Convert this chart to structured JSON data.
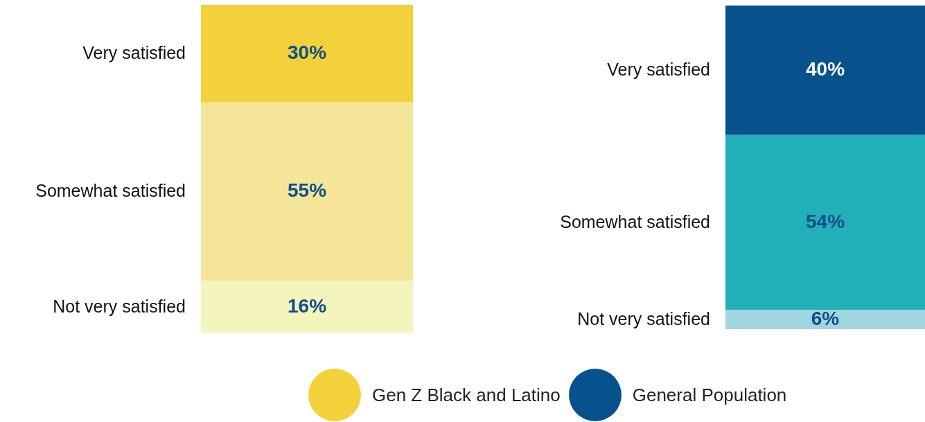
{
  "chart_data": [
    {
      "type": "bar",
      "stacked": true,
      "categories": [
        null
      ],
      "series": [
        {
          "name": "Not very satisfied",
          "color": "#f4f4bd",
          "values": [
            16
          ],
          "value_labels": [
            "16%"
          ]
        },
        {
          "name": "Somewhat satisfied",
          "color": "#f4e598",
          "values": [
            55
          ],
          "value_labels": [
            "55%"
          ]
        },
        {
          "name": "Very satisfied",
          "color": "#f2d13a",
          "values": [
            30
          ],
          "value_labels": [
            "30%"
          ]
        }
      ]
    },
    {
      "type": "bar",
      "stacked": true,
      "categories": [
        null
      ],
      "series": [
        {
          "name": "Not very satisfied",
          "color": "#a1d6de",
          "values": [
            6
          ],
          "value_labels": [
            "6%"
          ]
        },
        {
          "name": "Somewhat satisfied",
          "color": "#21b0b8",
          "values": [
            54
          ],
          "value_labels": [
            "54%"
          ]
        },
        {
          "name": "Very satisfied",
          "color": "#07528c",
          "values": [
            40
          ],
          "value_labels": [
            "40%"
          ]
        }
      ]
    },
    {
      "type": "other",
      "annotations": [
        "Gen Z Black and Latino",
        "General Population"
      ],
      "colors": [
        "#f2d13a",
        "#07528c"
      ]
    }
  ]
}
